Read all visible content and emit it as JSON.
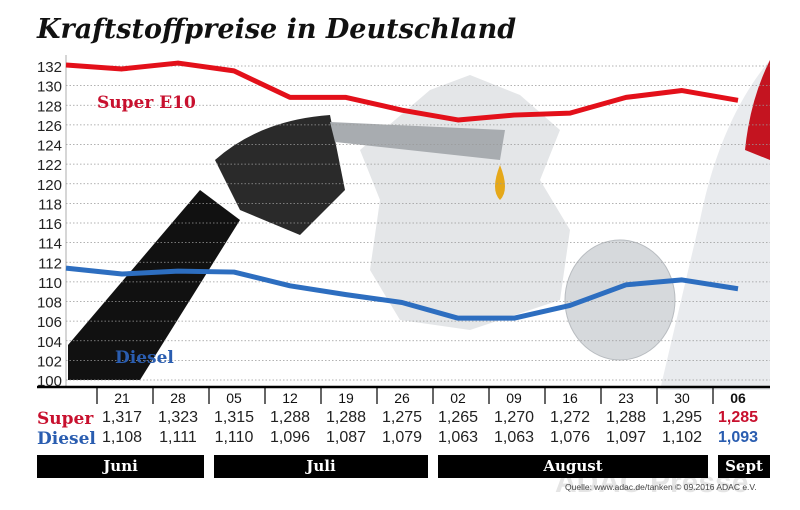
{
  "chart_data": {
    "type": "line",
    "title": "Kraftstoffpreise in Deutschland",
    "categories": [
      "21",
      "28",
      "05",
      "12",
      "19",
      "26",
      "02",
      "09",
      "16",
      "23",
      "30",
      "06"
    ],
    "months": [
      {
        "label": "Juni",
        "span": 2
      },
      {
        "label": "Juli",
        "span": 4
      },
      {
        "label": "August",
        "span": 5
      },
      {
        "label": "Sept",
        "span": 1
      }
    ],
    "yticks": [
      100,
      102,
      104,
      106,
      108,
      110,
      112,
      114,
      116,
      118,
      120,
      122,
      124,
      126,
      128,
      130,
      132
    ],
    "ylim": [
      100,
      132
    ],
    "grid": true,
    "series": [
      {
        "name": "Super E10",
        "row_label": "Super",
        "color": "#e3101a",
        "label_color": "#c8102e",
        "values": [
          131.7,
          132.3,
          131.5,
          128.8,
          128.8,
          127.5,
          126.5,
          127.0,
          127.2,
          128.8,
          129.5,
          128.5
        ],
        "table": [
          "1,317",
          "1,323",
          "1,315",
          "1,288",
          "1,288",
          "1,275",
          "1,265",
          "1,270",
          "1,272",
          "1,288",
          "1,295",
          "1,285"
        ]
      },
      {
        "name": "Diesel",
        "row_label": "Diesel",
        "color": "#2d6ec0",
        "label_color": "#2a5db0",
        "values": [
          110.8,
          111.1,
          111.0,
          109.6,
          108.7,
          107.9,
          106.3,
          106.3,
          107.6,
          109.7,
          110.2,
          109.3
        ],
        "table": [
          "1,108",
          "1,111",
          "1,110",
          "1,096",
          "1,087",
          "1,079",
          "1,063",
          "1,063",
          "1,076",
          "1,097",
          "1,102",
          "1,093"
        ]
      }
    ]
  },
  "source": "Quelle: www.adac.de/tanken   © 09.2016  ADAC e.V.",
  "watermark": "ADAC Presse"
}
